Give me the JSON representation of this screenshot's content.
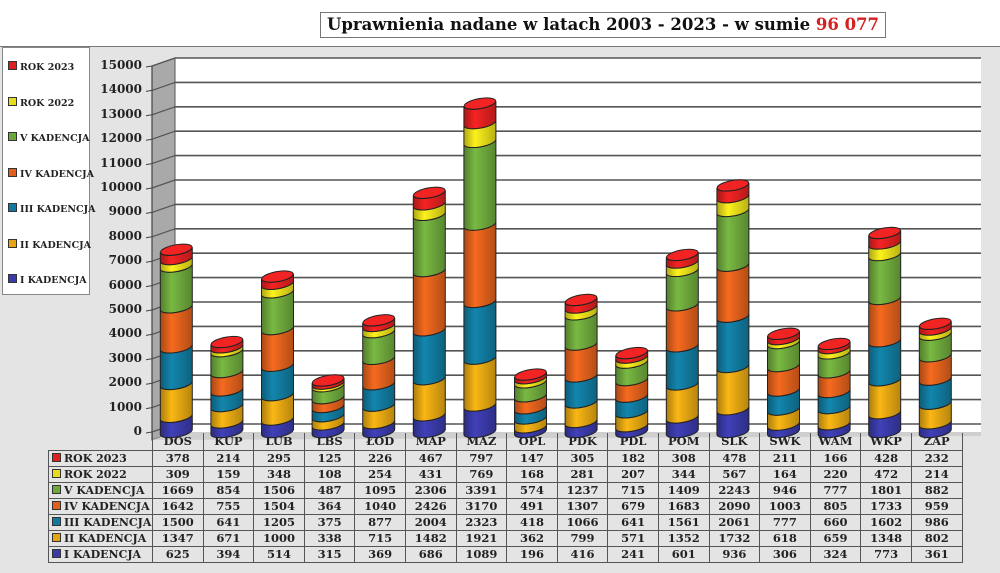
{
  "title": {
    "text": "Uprawnienia nadane w latach 2003 - 2023 - w sumie ",
    "total": "96 077"
  },
  "colors": {
    "ROK 2023": "#e02020",
    "ROK 2022": "#e6dc1a",
    "V KADENCJA": "#6ea83c",
    "IV KADENCJA": "#e0601c",
    "III KADENCJA": "#117a9e",
    "II KADENCJA": "#e3a612",
    "I KADENCJA": "#3a3aa8"
  },
  "legend": [
    {
      "label": "ROK 2023",
      "color": "#e02020"
    },
    {
      "label": "ROK 2022",
      "color": "#e6dc1a"
    },
    {
      "label": "V KADENCJA",
      "color": "#6ea83c"
    },
    {
      "label": "IV KADENCJA",
      "color": "#e0601c"
    },
    {
      "label": "III KADENCJA",
      "color": "#117a9e"
    },
    {
      "label": "II KADENCJA",
      "color": "#e3a612"
    },
    {
      "label": "I KADENCJA",
      "color": "#3a3aa8"
    }
  ],
  "chart_data": {
    "type": "bar",
    "stacked": true,
    "style": "3d-cylinder",
    "title": "Uprawnienia nadane w latach 2003 - 2023 - w sumie 96 077",
    "xlabel": "",
    "ylabel": "",
    "ylim": [
      0,
      15000
    ],
    "yticks": [
      0,
      1000,
      2000,
      3000,
      4000,
      5000,
      6000,
      7000,
      8000,
      9000,
      10000,
      11000,
      12000,
      13000,
      14000,
      15000
    ],
    "grid": true,
    "legend_position": "left",
    "data_table": true,
    "categories": [
      "DOS",
      "KUP",
      "LUB",
      "LBS",
      "ŁOD",
      "MAP",
      "MAZ",
      "OPL",
      "PDK",
      "PDL",
      "POM",
      "SLK",
      "SWK",
      "WAM",
      "WKP",
      "ZAP"
    ],
    "series": [
      {
        "name": "I KADENCJA",
        "color": "#3a3aa8",
        "values": [
          625,
          394,
          514,
          315,
          369,
          686,
          1089,
          196,
          416,
          241,
          601,
          936,
          306,
          324,
          773,
          361
        ]
      },
      {
        "name": "II KADENCJA",
        "color": "#e3a612",
        "values": [
          1347,
          671,
          1000,
          338,
          715,
          1482,
          1921,
          362,
          799,
          571,
          1352,
          1732,
          618,
          659,
          1348,
          802
        ]
      },
      {
        "name": "III KADENCJA",
        "color": "#117a9e",
        "values": [
          1500,
          641,
          1205,
          375,
          877,
          2004,
          2323,
          418,
          1066,
          641,
          1561,
          2061,
          777,
          660,
          1602,
          986
        ]
      },
      {
        "name": "IV KADENCJA",
        "color": "#e0601c",
        "values": [
          1642,
          755,
          1504,
          364,
          1040,
          2426,
          3170,
          491,
          1307,
          679,
          1683,
          2090,
          1003,
          805,
          1733,
          959
        ]
      },
      {
        "name": "V KADENCJA",
        "color": "#6ea83c",
        "values": [
          1669,
          854,
          1506,
          487,
          1095,
          2306,
          3391,
          574,
          1237,
          715,
          1409,
          2243,
          946,
          777,
          1801,
          882
        ]
      },
      {
        "name": "ROK 2022",
        "color": "#e6dc1a",
        "values": [
          309,
          159,
          348,
          108,
          254,
          431,
          769,
          168,
          281,
          207,
          344,
          567,
          164,
          220,
          472,
          214
        ]
      },
      {
        "name": "ROK 2023",
        "color": "#e02020",
        "values": [
          378,
          214,
          295,
          125,
          226,
          467,
          797,
          147,
          305,
          182,
          308,
          478,
          211,
          166,
          428,
          232
        ]
      }
    ]
  },
  "table": {
    "row_order": [
      "ROK 2023",
      "ROK 2022",
      "V KADENCJA",
      "IV KADENCJA",
      "III KADENCJA",
      "II KADENCJA",
      "I KADENCJA"
    ]
  }
}
